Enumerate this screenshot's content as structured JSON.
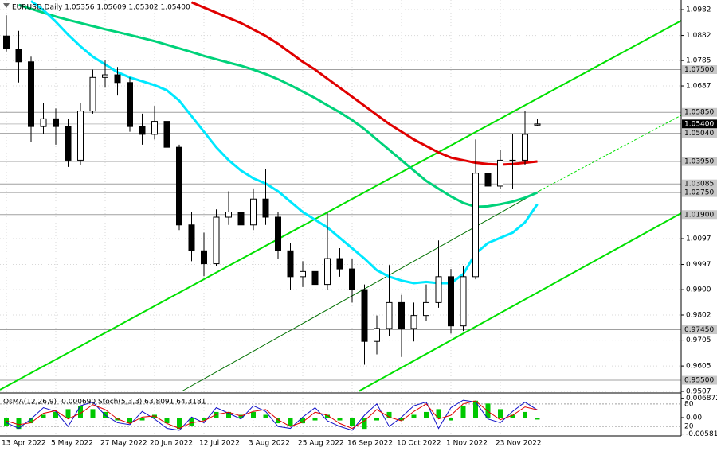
{
  "chart_data": [
    {
      "type": "candlestick",
      "title": "EURUSD,Daily  1.05356 1.05609 1.05302 1.05400",
      "categories": [
        "13 Apr 2022",
        null,
        null,
        null,
        "5 May 2022",
        null,
        null,
        null,
        "27 May 2022",
        null,
        null,
        null,
        "20 Jun 2022",
        null,
        null,
        null,
        "12 Jul 2022",
        null,
        null,
        null,
        "3 Aug 2022",
        null,
        null,
        null,
        "25 Aug 2022",
        null,
        null,
        null,
        "16 Sep 2022",
        null,
        null,
        null,
        "10 Oct 2022",
        null,
        null,
        null,
        "1 Nov 2022",
        null,
        null,
        null,
        "23 Nov 2022",
        null,
        null,
        null
      ],
      "open": [
        1.088,
        1.083,
        1.078,
        1.053,
        1.056,
        1.053,
        1.04,
        1.059,
        1.072,
        1.073,
        1.07,
        1.053,
        1.05,
        1.055,
        1.045,
        1.015,
        1.005,
        1.0,
        1.018,
        1.02,
        1.015,
        1.025,
        1.018,
        1.005,
        0.995,
        0.997,
        0.992,
        1.002,
        0.998,
        0.99,
        0.97,
        0.975,
        0.985,
        0.975,
        0.98,
        0.985,
        0.995,
        0.976,
        0.995,
        1.035,
        1.03,
        1.04,
        1.04,
        1.05356
      ],
      "high": [
        1.096,
        1.09,
        1.08,
        1.062,
        1.06,
        1.056,
        1.062,
        1.075,
        1.0785,
        1.076,
        1.072,
        1.058,
        1.061,
        1.058,
        1.046,
        1.02,
        1.012,
        1.021,
        1.028,
        1.024,
        1.029,
        1.0365,
        1.02,
        1.008,
        1.001,
        1.0,
        1.0197,
        1.006,
        1.002,
        0.992,
        0.98,
        0.9995,
        0.988,
        0.985,
        0.992,
        1.009,
        0.998,
        0.999,
        1.048,
        1.042,
        1.044,
        1.05,
        1.059,
        1.05609
      ],
      "low": [
        1.082,
        1.07,
        1.047,
        1.05,
        1.046,
        1.0374,
        1.038,
        1.058,
        1.068,
        1.065,
        1.051,
        1.046,
        1.048,
        1.042,
        1.013,
        1.001,
        0.9952,
        0.999,
        1.015,
        1.011,
        1.013,
        1.015,
        1.002,
        0.99,
        0.991,
        0.988,
        0.99,
        0.995,
        0.985,
        0.961,
        0.965,
        0.972,
        0.964,
        0.97,
        0.978,
        0.983,
        0.973,
        0.974,
        0.994,
        1.023,
        1.029,
        1.029,
        1.038,
        1.05302
      ],
      "close": [
        1.083,
        1.078,
        1.053,
        1.056,
        1.053,
        1.04,
        1.059,
        1.072,
        1.073,
        1.07,
        1.053,
        1.05,
        1.055,
        1.045,
        1.015,
        1.005,
        1.0,
        1.018,
        1.02,
        1.015,
        1.025,
        1.018,
        1.005,
        0.995,
        0.997,
        0.992,
        1.002,
        0.998,
        0.99,
        0.97,
        0.975,
        0.985,
        0.975,
        0.98,
        0.985,
        0.995,
        0.976,
        0.995,
        1.035,
        1.03,
        1.04,
        1.04,
        1.05,
        1.054
      ],
      "series": [
        {
          "color": "#e00000",
          "values": [
            null,
            null,
            null,
            null,
            null,
            null,
            null,
            null,
            null,
            null,
            null,
            null,
            null,
            null,
            null,
            1.101,
            1.099,
            1.097,
            1.095,
            1.093,
            1.0905,
            1.088,
            1.085,
            1.0815,
            1.078,
            1.075,
            1.0715,
            1.068,
            1.0645,
            1.061,
            1.0575,
            1.054,
            1.051,
            1.048,
            1.0455,
            1.043,
            1.041,
            1.04,
            1.039,
            1.0385,
            1.0383,
            1.0385,
            1.039,
            1.0395
          ]
        },
        {
          "color": "#00d27a",
          "values": [
            null,
            1.1,
            1.0985,
            1.097,
            1.0955,
            1.0942,
            1.093,
            1.0918,
            1.0906,
            1.0895,
            1.0884,
            1.0872,
            1.086,
            1.0846,
            1.0832,
            1.0818,
            1.0803,
            1.079,
            1.0777,
            1.0765,
            1.075,
            1.0733,
            1.0713,
            1.069,
            1.0665,
            1.064,
            1.0612,
            1.0585,
            1.0555,
            1.052,
            1.048,
            1.044,
            1.04,
            1.036,
            1.032,
            1.029,
            1.026,
            1.0235,
            1.022,
            1.0222,
            1.023,
            1.024,
            1.0255,
            1.0275
          ]
        },
        {
          "color": "#00e8ff",
          "values": [
            null,
            null,
            1.1015,
            1.098,
            1.0935,
            1.0885,
            1.084,
            1.08,
            1.077,
            1.074,
            1.072,
            1.0705,
            1.069,
            1.067,
            1.063,
            1.057,
            1.051,
            1.045,
            1.04,
            1.036,
            1.033,
            1.031,
            1.028,
            1.024,
            1.02,
            1.017,
            1.014,
            1.01,
            1.006,
            1.002,
            0.9975,
            0.995,
            0.9935,
            0.9925,
            0.993,
            0.9925,
            0.9925,
            0.996,
            1.004,
            1.008,
            1.01,
            1.012,
            1.016,
            1.023
          ]
        }
      ],
      "ylim": [
        0.9507,
        1.1019
      ],
      "yticks": [
        1.0982,
        1.0882,
        1.0785,
        1.0687,
        1.0097,
        0.9997,
        {
          "value": 0.99,
          "label": "0.9900"
        },
        0.9802,
        0.9705,
        0.9605,
        0.9507
      ],
      "levels": [
        {
          "value": 1.075,
          "label": "1.07500"
        },
        {
          "value": 1.0585,
          "label": "1.05850"
        },
        {
          "value": 1.0504,
          "label": "1.05040"
        },
        {
          "value": 1.0395,
          "label": "1.03950"
        },
        {
          "value": 1.03085,
          "label": "1.03085"
        },
        {
          "value": 1.0275,
          "label": "1.02750"
        },
        {
          "value": 1.019,
          "label": "1.01900"
        },
        {
          "value": 0.9745,
          "label": "0.97450"
        },
        {
          "value": 0.955,
          "label": "0.95500"
        }
      ],
      "current": {
        "value": 1.054,
        "label": "1.05400"
      },
      "grid": true
    },
    {
      "type": "oscillator",
      "title": "OsMA(12,26,9) -0.000690 Stoch(5,3,3) 63.8091 64.3181",
      "osma": [
        -0.003,
        -0.004,
        -0.002,
        0.001,
        0.002,
        0.003,
        0.004,
        0.003,
        0.002,
        -0.001,
        -0.002,
        -0.001,
        0.001,
        -0.002,
        -0.004,
        -0.003,
        -0.001,
        0.002,
        0.002,
        0.001,
        0.002,
        0.001,
        -0.002,
        -0.003,
        -0.002,
        -0.001,
        0.001,
        -0.001,
        -0.003,
        -0.004,
        -0.001,
        0.002,
        -0.001,
        0.001,
        0.002,
        0.003,
        -0.001,
        0.004,
        0.006,
        0.005,
        0.003,
        0.001,
        0.002,
        -0.00069
      ],
      "osma_color": "#00c800",
      "osma_lim": [
        -0.0065,
        0.0082
      ],
      "osma_ticks": [
        0.0068723,
        {
          "value": 0,
          "label": "0.00"
        },
        -0.005812
      ],
      "series": [
        {
          "color": "#1010c8",
          "values": [
            30,
            15,
            40,
            70,
            60,
            20,
            75,
            85,
            50,
            30,
            25,
            60,
            40,
            15,
            10,
            45,
            30,
            70,
            55,
            40,
            75,
            60,
            20,
            15,
            45,
            70,
            35,
            20,
            10,
            50,
            80,
            20,
            45,
            75,
            85,
            15,
            70,
            90,
            85,
            40,
            30,
            60,
            85,
            63.8091
          ]
        },
        {
          "color": "#e00000",
          "values": [
            35,
            25,
            30,
            55,
            62,
            40,
            55,
            78,
            65,
            40,
            28,
            45,
            48,
            28,
            15,
            30,
            35,
            52,
            58,
            48,
            60,
            65,
            38,
            20,
            32,
            58,
            50,
            28,
            15,
            35,
            65,
            45,
            35,
            60,
            80,
            40,
            50,
            80,
            88,
            60,
            38,
            50,
            72,
            64.3181
          ]
        }
      ],
      "stoch_lim": [
        -5,
        105
      ],
      "stoch_ticks": [
        80,
        20
      ]
    }
  ]
}
